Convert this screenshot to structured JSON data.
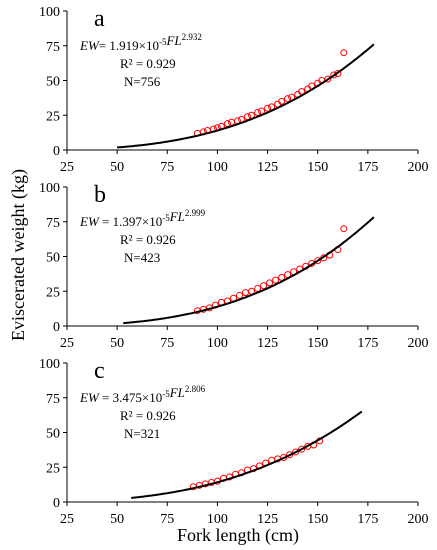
{
  "chart_data": [
    {
      "type": "scatter",
      "panel_label": "a",
      "equation": {
        "lhs": "EW",
        "eq": "= ",
        "coef": "1.919×10",
        "coef_exp": "-5",
        "var": "FL",
        "exp": "2.932"
      },
      "r2": "R² = 0.929",
      "n": "N=756",
      "a": 1.919e-05,
      "b": 2.932,
      "curve_range": [
        50,
        178
      ],
      "xlim": [
        25,
        200
      ],
      "ylim": [
        0,
        100
      ],
      "series": [
        {
          "values": [
            [
              90,
              12
            ],
            [
              93,
              13
            ],
            [
              95,
              14
            ],
            [
              98,
              15
            ],
            [
              100,
              16
            ],
            [
              102,
              17
            ],
            [
              105,
              19
            ],
            [
              107,
              20
            ],
            [
              110,
              21
            ],
            [
              112,
              22
            ],
            [
              115,
              24
            ],
            [
              117,
              25
            ],
            [
              120,
              27
            ],
            [
              122,
              28
            ],
            [
              125,
              30
            ],
            [
              127,
              31
            ],
            [
              130,
              33
            ],
            [
              132,
              35
            ],
            [
              135,
              37
            ],
            [
              137,
              38
            ],
            [
              140,
              40
            ],
            [
              142,
              42
            ],
            [
              145,
              44
            ],
            [
              147,
              46
            ],
            [
              150,
              48
            ],
            [
              152,
              50
            ],
            [
              155,
              51
            ],
            [
              158,
              54
            ],
            [
              160,
              55
            ],
            [
              163,
              70
            ]
          ]
        }
      ],
      "color": "#ff0000",
      "curve_color": "#000000"
    },
    {
      "type": "scatter",
      "panel_label": "b",
      "equation": {
        "lhs": "EW",
        "eq": " = ",
        "coef": "1.397×10",
        "coef_exp": "-5",
        "var": "FL",
        "exp": "2.999"
      },
      "r2": "R² = 0.926",
      "n": "N=423",
      "a": 1.397e-05,
      "b": 2.999,
      "curve_range": [
        53,
        178
      ],
      "xlim": [
        25,
        200
      ],
      "ylim": [
        0,
        100
      ],
      "series": [
        {
          "values": [
            [
              90,
              11
            ],
            [
              93,
              12
            ],
            [
              96,
              13
            ],
            [
              99,
              15
            ],
            [
              102,
              17
            ],
            [
              105,
              18
            ],
            [
              108,
              20
            ],
            [
              111,
              22
            ],
            [
              114,
              24
            ],
            [
              117,
              25
            ],
            [
              120,
              27
            ],
            [
              123,
              29
            ],
            [
              126,
              31
            ],
            [
              129,
              33
            ],
            [
              132,
              35
            ],
            [
              135,
              37
            ],
            [
              138,
              39
            ],
            [
              141,
              41
            ],
            [
              144,
              43
            ],
            [
              147,
              45
            ],
            [
              150,
              47
            ],
            [
              153,
              49
            ],
            [
              156,
              51
            ],
            [
              160,
              55
            ],
            [
              163,
              70
            ]
          ]
        }
      ],
      "color": "#ff0000",
      "curve_color": "#000000"
    },
    {
      "type": "scatter",
      "panel_label": "c",
      "equation": {
        "lhs": "EW",
        "eq": " = ",
        "coef": "3.475×10",
        "coef_exp": "-5",
        "var": "FL",
        "exp": "2.806"
      },
      "r2": "R² = 0.926",
      "n": "N=321",
      "a": 3.475e-05,
      "b": 2.806,
      "curve_range": [
        57,
        172
      ],
      "xlim": [
        25,
        200
      ],
      "ylim": [
        0,
        100
      ],
      "series": [
        {
          "values": [
            [
              88,
              11
            ],
            [
              91,
              12
            ],
            [
              94,
              13
            ],
            [
              97,
              14
            ],
            [
              100,
              15
            ],
            [
              103,
              17
            ],
            [
              106,
              18
            ],
            [
              109,
              20
            ],
            [
              112,
              21
            ],
            [
              115,
              23
            ],
            [
              118,
              24
            ],
            [
              121,
              26
            ],
            [
              124,
              28
            ],
            [
              127,
              30
            ],
            [
              130,
              31
            ],
            [
              133,
              32
            ],
            [
              136,
              34
            ],
            [
              139,
              36
            ],
            [
              142,
              38
            ],
            [
              145,
              40
            ],
            [
              148,
              41
            ],
            [
              151,
              44
            ]
          ]
        }
      ],
      "color": "#ff0000",
      "curve_color": "#000000"
    }
  ],
  "shared": {
    "ylabel": "Eviscerated weight (kg)",
    "xlabel": "Fork length (cm)",
    "xticks": [
      "25",
      "50",
      "75",
      "100",
      "125",
      "150",
      "175",
      "200"
    ],
    "yticks": [
      "0",
      "25",
      "50",
      "75",
      "100"
    ]
  }
}
